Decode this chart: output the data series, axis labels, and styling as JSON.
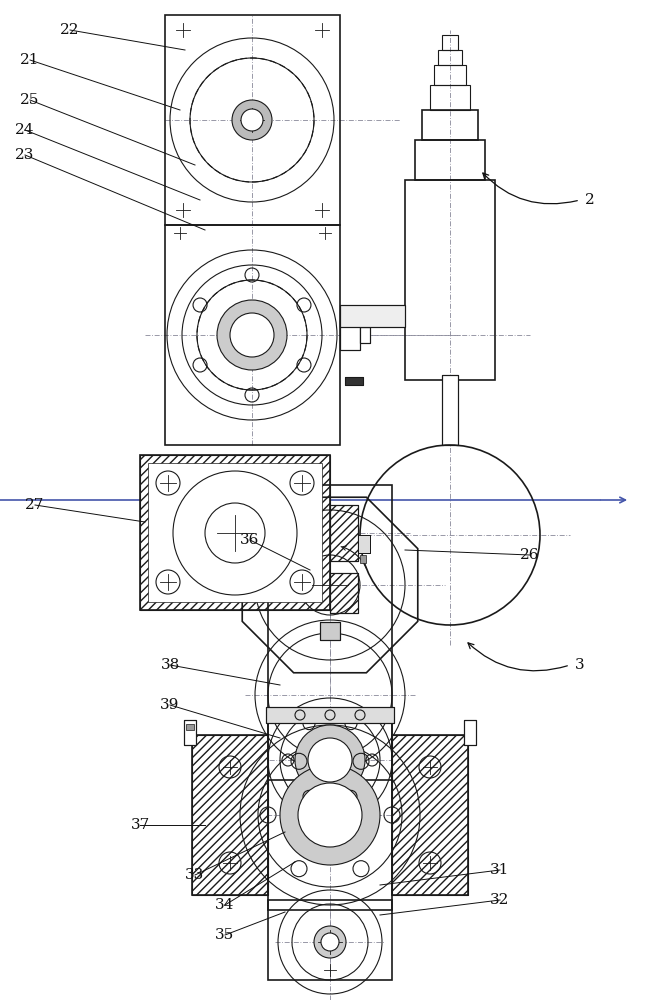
{
  "bg_color": "#ffffff",
  "lc": "#1a1a1a",
  "cl_color": "#888899",
  "label_fontsize": 11,
  "fig_width": 6.52,
  "fig_height": 10.0
}
